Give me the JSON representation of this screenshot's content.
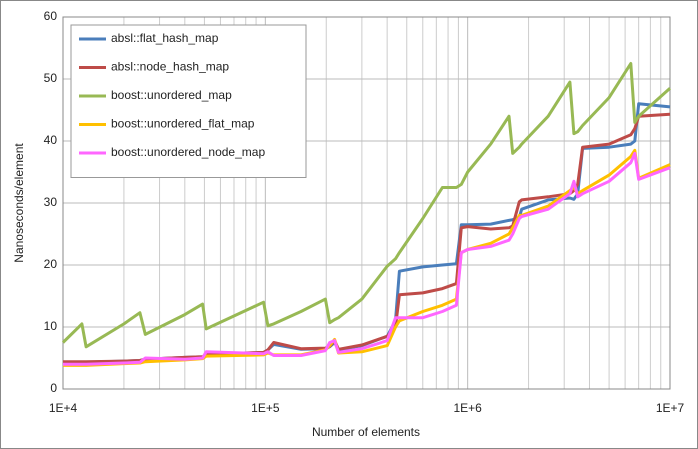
{
  "chart_data": {
    "type": "line",
    "x_label": "Number of elements",
    "y_label": "Nanoseconds/element",
    "x": [
      10000,
      12400,
      13000,
      20000,
      24000,
      25500,
      40000,
      49000,
      51000,
      98000,
      103000,
      110000,
      150000,
      198000,
      208000,
      220000,
      230000,
      300000,
      400000,
      440000,
      460000,
      600000,
      750000,
      880000,
      930000,
      1000000,
      1300000,
      1600000,
      1670000,
      1800000,
      1850000,
      2500000,
      3200000,
      3350000,
      3500000,
      3700000,
      5000000,
      6400000,
      6700000,
      7000000,
      10000000
    ],
    "series": [
      {
        "name": "absl::flat_hash_map",
        "color": "#4a7ebb",
        "values": [
          4.3,
          4.3,
          4.3,
          4.5,
          4.6,
          4.8,
          5.1,
          5.2,
          5.5,
          5.9,
          6.3,
          7.2,
          6.4,
          6.5,
          6.8,
          7.5,
          6.3,
          7,
          8.5,
          11,
          19,
          19.7,
          20,
          20.2,
          26.5,
          26.5,
          26.6,
          27.2,
          27.3,
          27.7,
          29,
          30.5,
          30.8,
          30.6,
          31.5,
          38.8,
          39,
          39.5,
          40,
          46,
          45.5
        ]
      },
      {
        "name": "absl::node_hash_map",
        "color": "#be4b48",
        "values": [
          4.4,
          4.4,
          4.4,
          4.5,
          4.6,
          4.8,
          5.1,
          5.2,
          5.6,
          5.9,
          6.3,
          7.5,
          6.5,
          6.6,
          6.9,
          7.8,
          6.4,
          7.1,
          8.5,
          10,
          15.2,
          15.5,
          16.2,
          17,
          26,
          26.2,
          25.8,
          26,
          26.3,
          30.2,
          30.5,
          31,
          31.5,
          32,
          33,
          39,
          39.5,
          41,
          42,
          44,
          44.3
        ]
      },
      {
        "name": "boost::unordered_map",
        "color": "#98b954",
        "values": [
          7.5,
          10.5,
          6.8,
          10.5,
          12.3,
          8.8,
          12,
          13.7,
          9.7,
          14,
          10.2,
          10.5,
          12.5,
          14.5,
          10.7,
          11.2,
          11.5,
          14.5,
          19.8,
          21,
          22,
          27.5,
          32.5,
          32.5,
          33,
          35,
          39.5,
          44,
          38,
          39,
          39.5,
          44,
          49.5,
          41.2,
          41.5,
          42.5,
          47,
          52.5,
          43,
          44,
          48.5
        ]
      },
      {
        "name": "boost::unordered_flat_map",
        "color": "#ffc000",
        "values": [
          3.8,
          3.8,
          3.8,
          4.1,
          4.2,
          4.4,
          4.7,
          4.9,
          5.3,
          5.5,
          5.8,
          5.5,
          5.5,
          6.3,
          7,
          8,
          5.8,
          6,
          7,
          10,
          11,
          12.5,
          13.5,
          14.5,
          22,
          22.5,
          23.5,
          25,
          26,
          28,
          28,
          29.5,
          32,
          32.5,
          31.5,
          32,
          34.5,
          37.5,
          38.5,
          34,
          36.2
        ]
      },
      {
        "name": "boost::unordered_node_map",
        "color": "#ff66ff",
        "values": [
          4,
          4,
          4,
          4.2,
          4.3,
          5,
          4.8,
          5,
          6,
          5.7,
          6,
          5.4,
          5.4,
          6.2,
          7.5,
          7.8,
          5.9,
          6.5,
          7.8,
          11.5,
          11.5,
          11.5,
          12.5,
          13.5,
          22,
          22.5,
          23,
          24,
          25,
          27.5,
          27.8,
          29,
          31.5,
          33.5,
          31,
          31.5,
          33.5,
          36.5,
          38,
          33.8,
          35.7
        ]
      }
    ],
    "xlim": [
      10000,
      10000000
    ],
    "log_x": true,
    "xticks": [
      {
        "value": 10000,
        "label": "1E+4"
      },
      {
        "value": 100000,
        "label": "1E+5"
      },
      {
        "value": 1000000,
        "label": "1E+6"
      },
      {
        "value": 10000000,
        "label": "1E+7"
      }
    ],
    "ylim": [
      0,
      60
    ],
    "yticks": [
      0,
      10,
      20,
      30,
      40,
      50,
      60
    ],
    "grid": true,
    "minor_grid": true,
    "legend": "top-left"
  }
}
